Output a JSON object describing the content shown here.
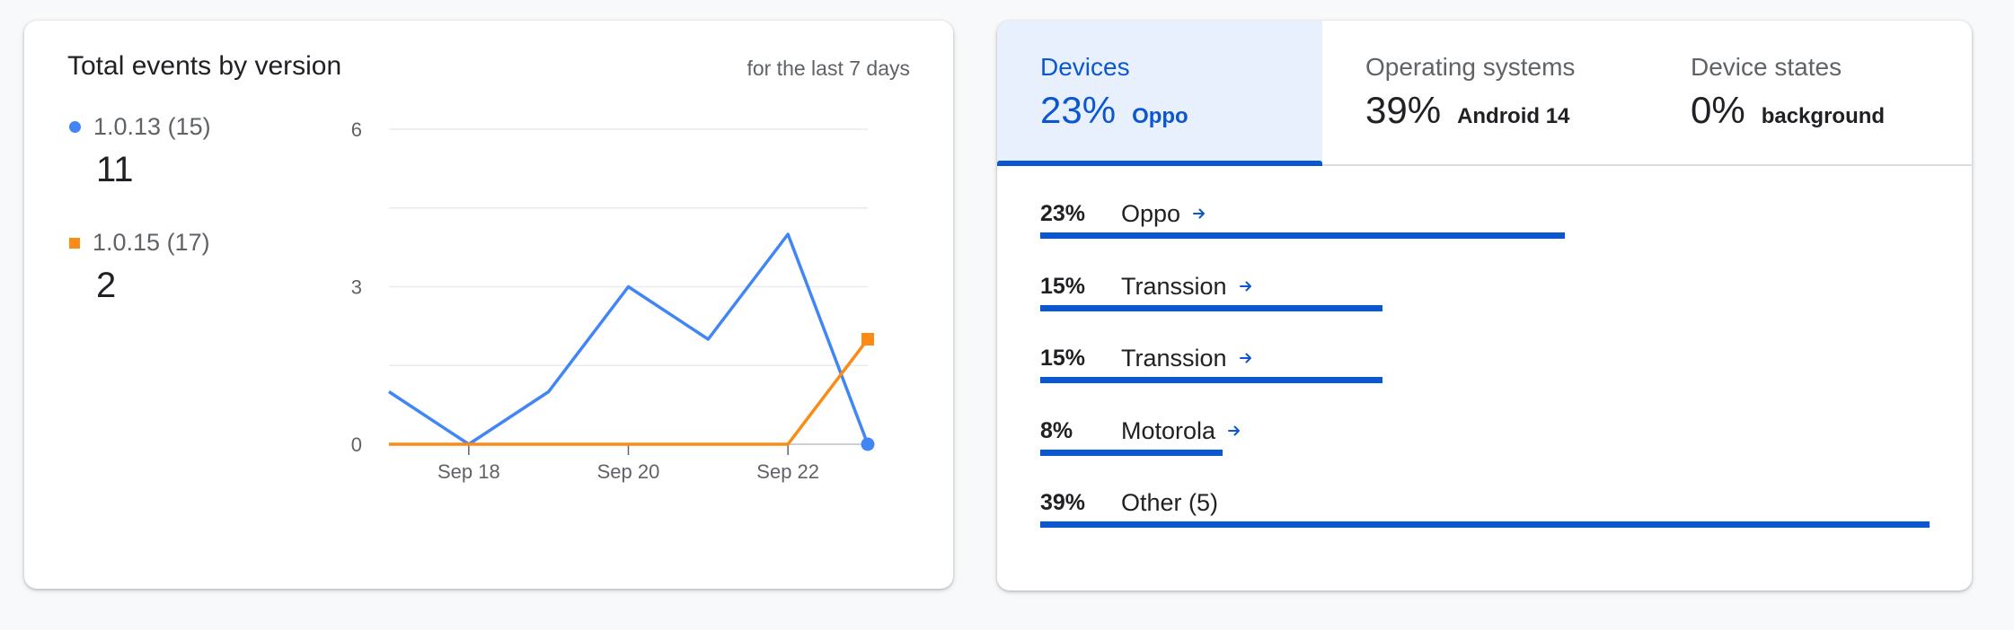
{
  "left_card": {
    "title": "Total events by version",
    "subtitle": "for the last 7 days",
    "legend": [
      {
        "label": "1.0.13 (15)",
        "value": "11",
        "color": "#4285f4",
        "marker": "circle"
      },
      {
        "label": "1.0.15 (17)",
        "value": "2",
        "color": "#fa8c16",
        "marker": "square"
      }
    ]
  },
  "chart_data": {
    "type": "line",
    "x": [
      "Sep 17",
      "Sep 18",
      "Sep 19",
      "Sep 20",
      "Sep 21",
      "Sep 22",
      "Sep 23"
    ],
    "x_tick_labels": [
      "Sep 18",
      "Sep 20",
      "Sep 22"
    ],
    "y_ticks": [
      0,
      3,
      6
    ],
    "ylim": [
      0,
      6
    ],
    "grid": true,
    "series": [
      {
        "name": "1.0.13 (15)",
        "color": "#4285f4",
        "marker": "circle",
        "values": [
          1,
          0,
          1,
          3,
          2,
          4,
          0
        ]
      },
      {
        "name": "1.0.15 (17)",
        "color": "#fa8c16",
        "marker": "square",
        "values": [
          0,
          0,
          0,
          0,
          0,
          0,
          2
        ]
      }
    ]
  },
  "right_card": {
    "tabs": [
      {
        "label": "Devices",
        "pct": "23%",
        "name": "Oppo",
        "active": true
      },
      {
        "label": "Operating systems",
        "pct": "39%",
        "name": "Android 14",
        "active": false
      },
      {
        "label": "Device states",
        "pct": "0%",
        "name": "background",
        "active": false
      }
    ],
    "rows": [
      {
        "pct": "23%",
        "label": "Oppo",
        "has_arrow": true,
        "share": 0.59
      },
      {
        "pct": "15%",
        "label": "Transsion",
        "has_arrow": true,
        "share": 0.385
      },
      {
        "pct": "15%",
        "label": "Transsion",
        "has_arrow": true,
        "share": 0.385
      },
      {
        "pct": "8%",
        "label": "Motorola",
        "has_arrow": true,
        "share": 0.205
      },
      {
        "pct": "39%",
        "label": "Other (5)",
        "has_arrow": false,
        "share": 1.0
      }
    ],
    "accent_color": "#0b57d0"
  }
}
